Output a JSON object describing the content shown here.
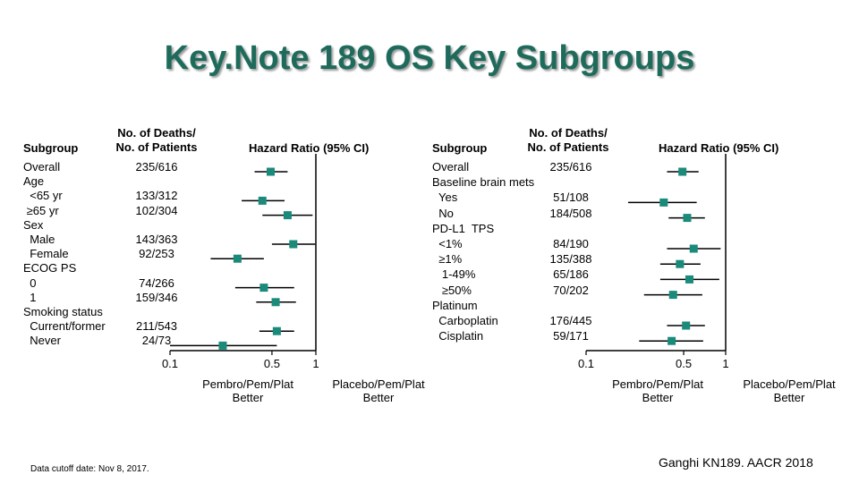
{
  "title": "Key.Note 189 OS Key Subgroups",
  "colors": {
    "title": "#1e6b5c",
    "marker": "#1a8a7a",
    "line": "#000000"
  },
  "footnote": "Data cutoff date: Nov 8, 2017.",
  "citation": "Ganghi KN189. AACR 2018",
  "chart_data": [
    {
      "type": "forest",
      "headers": {
        "subgroup": "Subgroup",
        "deaths_line1": "No. of Deaths/",
        "deaths_line2": "No. of Patients",
        "hr": "Hazard  Ratio (95% CI)"
      },
      "x_ticks": [
        "0.1",
        "0.5",
        "1"
      ],
      "xlim": [
        0.1,
        1
      ],
      "reference_line": 1,
      "favor_left": [
        "Pembro/Pem/Plat",
        "Better"
      ],
      "favor_right": [
        "Placebo/Pem/Plat",
        "Better"
      ],
      "rows": [
        {
          "label": "Overall",
          "deaths": "235/616",
          "hr": 0.49,
          "lo": 0.38,
          "hi": 0.64
        },
        {
          "label": "Age",
          "deaths": ""
        },
        {
          "label": "  <65 yr",
          "deaths": "133/312",
          "hr": 0.43,
          "lo": 0.31,
          "hi": 0.61
        },
        {
          "label": " ≥65 yr",
          "deaths": "102/304",
          "hr": 0.64,
          "lo": 0.43,
          "hi": 0.95
        },
        {
          "label": "Sex",
          "deaths": ""
        },
        {
          "label": "  Male",
          "deaths": "143/363",
          "hr": 0.7,
          "lo": 0.5,
          "hi": 0.99
        },
        {
          "label": "  Female",
          "deaths": "92/253",
          "hr": 0.29,
          "lo": 0.19,
          "hi": 0.44
        },
        {
          "label": "ECOG PS",
          "deaths": ""
        },
        {
          "label": "  0",
          "deaths": "74/266",
          "hr": 0.44,
          "lo": 0.28,
          "hi": 0.71
        },
        {
          "label": "  1",
          "deaths": "159/346",
          "hr": 0.53,
          "lo": 0.39,
          "hi": 0.73
        },
        {
          "label": "Smoking status",
          "deaths": ""
        },
        {
          "label": "  Current/former",
          "deaths": "211/543",
          "hr": 0.54,
          "lo": 0.41,
          "hi": 0.71
        },
        {
          "label": "  Never",
          "deaths": "24/73",
          "hr": 0.23,
          "lo": 0.1,
          "hi": 0.54
        }
      ]
    },
    {
      "type": "forest",
      "headers": {
        "subgroup": "Subgroup",
        "deaths_line1": "No. of Deaths/",
        "deaths_line2": "No. of Patients",
        "hr": "Hazard  Ratio (95% CI)"
      },
      "x_ticks": [
        "0.1",
        "0.5",
        "1"
      ],
      "xlim": [
        0.1,
        1
      ],
      "reference_line": 1,
      "favor_left": [
        "Pembro/Pem/Plat",
        "Better"
      ],
      "favor_right": [
        "Placebo/Pem/Plat",
        "Better"
      ],
      "rows": [
        {
          "label": "Overall",
          "deaths": "235/616",
          "hr": 0.49,
          "lo": 0.38,
          "hi": 0.64
        },
        {
          "label": "Baseline brain mets",
          "deaths": ""
        },
        {
          "label": "  Yes",
          "deaths": "51/108",
          "hr": 0.36,
          "lo": 0.2,
          "hi": 0.62
        },
        {
          "label": "  No",
          "deaths": "184/508",
          "hr": 0.53,
          "lo": 0.39,
          "hi": 0.71
        },
        {
          "label": "PD-L1  TPS",
          "deaths": ""
        },
        {
          "label": "  <1%",
          "deaths": "84/190",
          "hr": 0.59,
          "lo": 0.38,
          "hi": 0.92
        },
        {
          "label": "  ≥1%",
          "deaths": "135/388",
          "hr": 0.47,
          "lo": 0.34,
          "hi": 0.66
        },
        {
          "label": "   1-49%",
          "deaths": "65/186",
          "hr": 0.55,
          "lo": 0.34,
          "hi": 0.9
        },
        {
          "label": "   ≥50%",
          "deaths": "70/202",
          "hr": 0.42,
          "lo": 0.26,
          "hi": 0.68
        },
        {
          "label": "Platinum",
          "deaths": ""
        },
        {
          "label": "  Carboplatin",
          "deaths": "176/445",
          "hr": 0.52,
          "lo": 0.38,
          "hi": 0.71
        },
        {
          "label": "  Cisplatin",
          "deaths": "59/171",
          "hr": 0.41,
          "lo": 0.24,
          "hi": 0.69
        }
      ]
    }
  ]
}
